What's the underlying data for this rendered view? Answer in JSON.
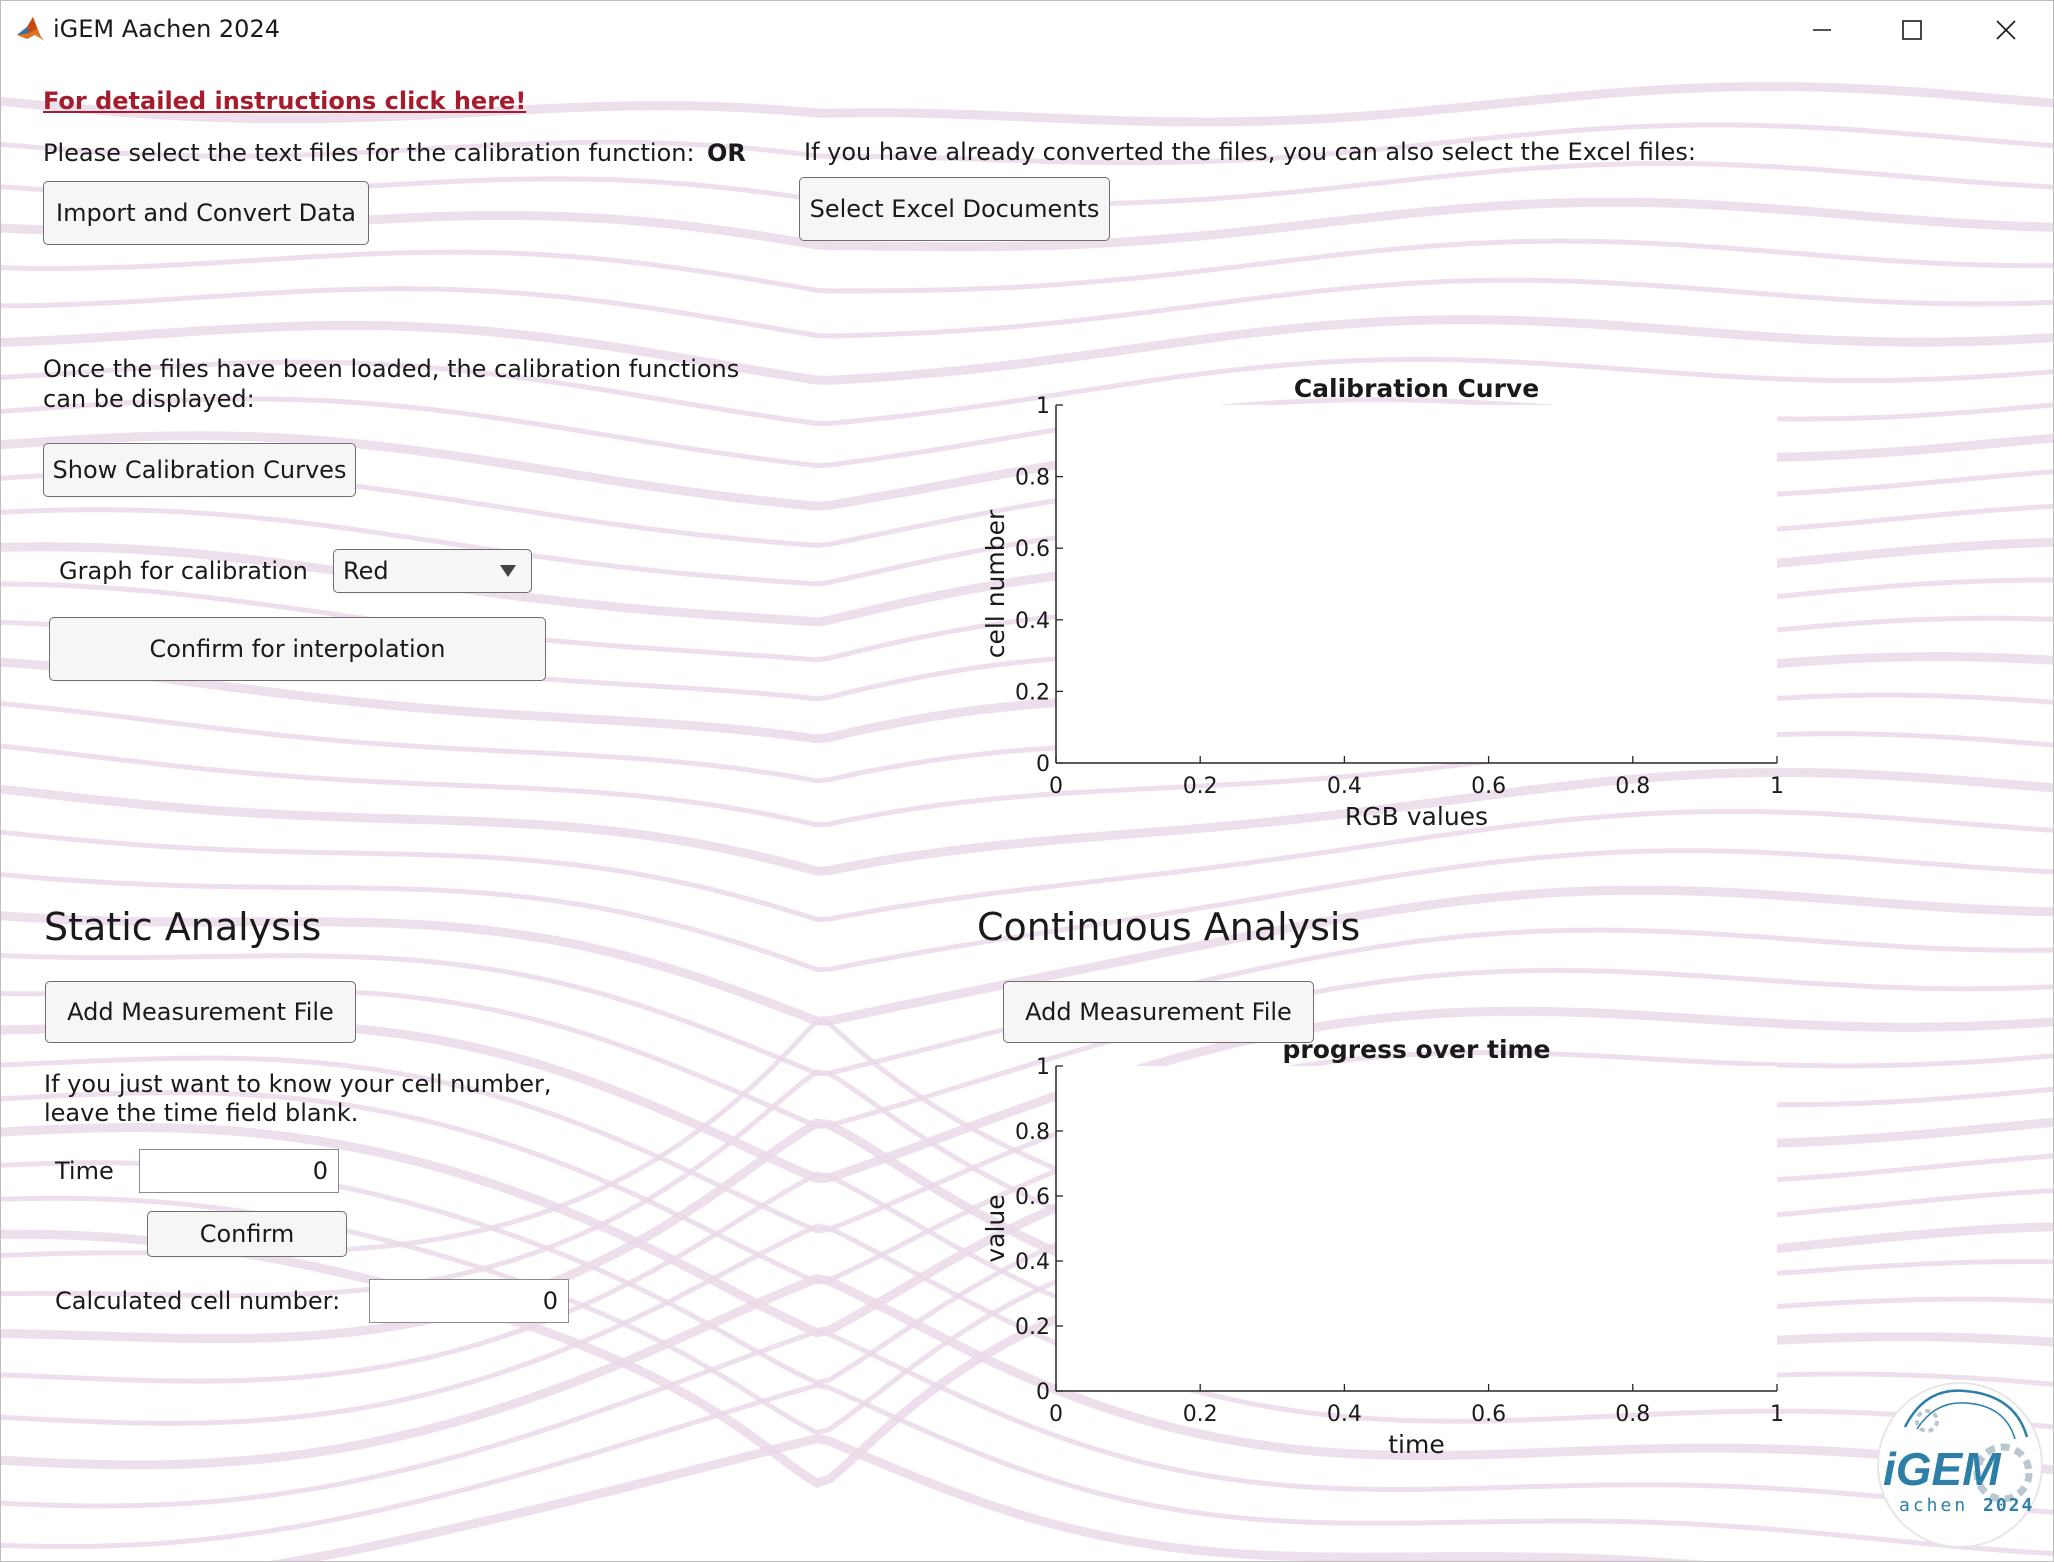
{
  "window": {
    "title": "iGEM Aachen 2024"
  },
  "instructions_link": "For detailed instructions click here!",
  "import_section": {
    "text_prompt": "Please select the text files for the calibration function:",
    "or_label": "OR",
    "excel_prompt": "If you have already converted the files, you can also select the Excel files:",
    "import_button": "Import and Convert Data",
    "excel_button": "Select Excel Documents"
  },
  "calibration_section": {
    "loaded_text_line1": "Once the files have been loaded, the calibration functions",
    "loaded_text_line2": "can be displayed:",
    "show_button": "Show Calibration Curves",
    "graph_label": "Graph for calibration",
    "graph_selected": "Red",
    "confirm_button": "Confirm for interpolation"
  },
  "static_analysis": {
    "title": "Static Analysis",
    "add_button": "Add Measurement File",
    "hint_line1": "If you just want to know your cell number,",
    "hint_line2": "leave the time field blank.",
    "time_label": "Time",
    "time_value": "0",
    "confirm_button": "Confirm",
    "result_label": "Calculated cell number:",
    "result_value": "0"
  },
  "continuous_analysis": {
    "title": "Continuous Analysis",
    "add_button": "Add Measurement File"
  },
  "logo": {
    "main": "iGEM",
    "sub": "achen",
    "year": "2024"
  },
  "colors": {
    "wave": "#ead9e8",
    "link": "#a51d2d",
    "button_bg": "#f6f6f6"
  },
  "chart_data": [
    {
      "type": "line",
      "title": "Calibration Curve",
      "xlabel": "RGB values",
      "ylabel": "cell number",
      "xlim": [
        0,
        1
      ],
      "ylim": [
        0,
        1
      ],
      "xticks": [
        "0",
        "0.2",
        "0.4",
        "0.6",
        "0.8",
        "1"
      ],
      "yticks": [
        "0",
        "0.2",
        "0.4",
        "0.6",
        "0.8",
        "1"
      ],
      "series": [],
      "grid": false
    },
    {
      "type": "line",
      "title": "progress over time",
      "xlabel": "time",
      "ylabel": "value",
      "xlim": [
        0,
        1
      ],
      "ylim": [
        0,
        1
      ],
      "xticks": [
        "0",
        "0.2",
        "0.4",
        "0.6",
        "0.8",
        "1"
      ],
      "yticks": [
        "0",
        "0.2",
        "0.4",
        "0.6",
        "0.8",
        "1"
      ],
      "series": [],
      "grid": false
    }
  ]
}
